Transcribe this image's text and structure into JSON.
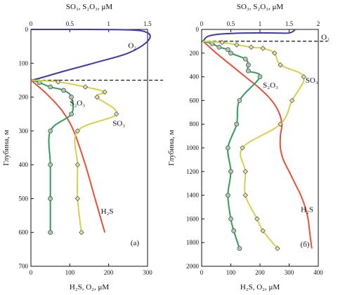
{
  "chart_data": [
    {
      "type": "line",
      "panel_label": "(а)",
      "ylabel": "Глубина, м",
      "y_inverted": true,
      "ylim": [
        0,
        700
      ],
      "yticks": [
        0,
        100,
        200,
        300,
        400,
        500,
        600,
        700
      ],
      "x_top_label": "SO₃, S₂O₃, μM",
      "x_top_lim": [
        0,
        1.5
      ],
      "x_top_ticks": [
        "0",
        "0.5",
        "1",
        "1.5"
      ],
      "x_top_tick_values": [
        0,
        0.5,
        1,
        1.5
      ],
      "x_bottom_label": "H₂S, O₂, μM",
      "x_bottom_lim": [
        0,
        300
      ],
      "x_bottom_ticks": [
        "0",
        "100",
        "200",
        "300"
      ],
      "x_bottom_tick_values": [
        0,
        100,
        200,
        300
      ],
      "dashed_line_depth": 150,
      "series": [
        {
          "name": "O₂",
          "axis": "bottom",
          "color": "#3a3aa8",
          "markers": false,
          "points": [
            [
              0,
              0
            ],
            [
              240,
              1
            ],
            [
              300,
              10
            ],
            [
              300,
              35
            ],
            [
              250,
              70
            ],
            [
              160,
              100
            ],
            [
              80,
              125
            ],
            [
              20,
              145
            ],
            [
              0,
              150
            ]
          ],
          "label_at": [
            250,
            55
          ]
        },
        {
          "name": "H₂S",
          "axis": "bottom",
          "color": "#e8503a",
          "markers": false,
          "points": [
            [
              0,
              150
            ],
            [
              40,
              190
            ],
            [
              80,
              240
            ],
            [
              110,
              300
            ],
            [
              140,
              400
            ],
            [
              165,
              500
            ],
            [
              190,
              600
            ]
          ],
          "label_at": [
            180,
            545
          ]
        },
        {
          "name": "S₂O₃",
          "axis": "top",
          "color": "#2e9e55",
          "markers": true,
          "points": [
            [
              0.01,
              150
            ],
            [
              0.11,
              157
            ],
            [
              0.25,
              170
            ],
            [
              0.42,
              180
            ],
            [
              0.52,
              200
            ],
            [
              0.52,
              250
            ],
            [
              0.25,
              300
            ],
            [
              0.25,
              400
            ],
            [
              0.25,
              500
            ],
            [
              0.25,
              600
            ]
          ],
          "label_at": [
            0.5,
            225
          ]
        },
        {
          "name": "SO₃",
          "axis": "top",
          "color": "#d8cf4a",
          "markers": true,
          "points": [
            [
              0.01,
              150
            ],
            [
              0.35,
              155
            ],
            [
              0.7,
              170
            ],
            [
              0.95,
              185
            ],
            [
              0.85,
              200
            ],
            [
              1.1,
              250
            ],
            [
              0.6,
              300
            ],
            [
              0.6,
              400
            ],
            [
              0.6,
              500
            ],
            [
              0.65,
              600
            ]
          ],
          "label_at": [
            1.05,
            285
          ]
        }
      ]
    },
    {
      "type": "line",
      "panel_label": "(б)",
      "ylabel": "Глубина, м",
      "y_inverted": true,
      "ylim": [
        0,
        2000
      ],
      "yticks": [
        0,
        200,
        400,
        600,
        800,
        1000,
        1200,
        1400,
        1600,
        1800,
        2000
      ],
      "x_top_label": "SO₃, S₂O₃, μM",
      "x_top_lim": [
        0,
        2
      ],
      "x_top_ticks": [
        "0",
        "0.5",
        "1",
        "1.5",
        "2"
      ],
      "x_top_tick_values": [
        0,
        0.5,
        1,
        1.5,
        2
      ],
      "x_bottom_label": "H₂S, O₂, μM",
      "x_bottom_lim": [
        0,
        400
      ],
      "x_bottom_ticks": [
        "0",
        "100",
        "200",
        "300",
        "400"
      ],
      "x_bottom_tick_values": [
        0,
        100,
        200,
        300,
        400
      ],
      "dashed_line_depth": 100,
      "series": [
        {
          "name": "O₂",
          "axis": "bottom",
          "color": "#3a3aa8",
          "markers": false,
          "points": [
            [
              5,
              100
            ],
            [
              20,
              60
            ],
            [
              60,
              40
            ],
            [
              150,
              30
            ],
            [
              250,
              30
            ],
            [
              300,
              30
            ],
            [
              320,
              5
            ]
          ],
          "label_at": [
            410,
            85
          ]
        },
        {
          "name": "H₂S",
          "axis": "bottom",
          "color": "#e8503a",
          "markers": false,
          "points": [
            [
              5,
              100
            ],
            [
              50,
              200
            ],
            [
              100,
              300
            ],
            [
              150,
              400
            ],
            [
              200,
              500
            ],
            [
              240,
              600
            ],
            [
              265,
              700
            ],
            [
              275,
              800
            ],
            [
              270,
              900
            ],
            [
              270,
              1000
            ],
            [
              280,
              1100
            ],
            [
              300,
              1200
            ],
            [
              320,
              1300
            ],
            [
              340,
              1400
            ],
            [
              355,
              1500
            ],
            [
              365,
              1600
            ],
            [
              370,
              1700
            ],
            [
              375,
              1800
            ],
            [
              378,
              1850
            ]
          ],
          "label_at": [
            340,
            1540
          ]
        },
        {
          "name": "S₂O₃",
          "axis": "top",
          "color": "#2e9e55",
          "markers": true,
          "points": [
            [
              0.02,
              100
            ],
            [
              0.18,
              120
            ],
            [
              0.3,
              150
            ],
            [
              0.45,
              170
            ],
            [
              0.5,
              200
            ],
            [
              0.75,
              250
            ],
            [
              0.8,
              300
            ],
            [
              0.8,
              350
            ],
            [
              1.0,
              400
            ],
            [
              0.65,
              600
            ],
            [
              0.6,
              800
            ],
            [
              0.45,
              1000
            ],
            [
              0.5,
              1200
            ],
            [
              0.45,
              1400
            ],
            [
              0.5,
              1600
            ],
            [
              0.55,
              1700
            ],
            [
              0.65,
              1850
            ]
          ],
          "label_at": [
            1.05,
            490
          ]
        },
        {
          "name": "SO₃",
          "axis": "top",
          "color": "#d8cf4a",
          "markers": true,
          "points": [
            [
              0.02,
              100
            ],
            [
              0.35,
              110
            ],
            [
              0.6,
              130
            ],
            [
              0.85,
              150
            ],
            [
              1.05,
              160
            ],
            [
              1.25,
              200
            ],
            [
              1.35,
              300
            ],
            [
              1.75,
              400
            ],
            [
              1.55,
              600
            ],
            [
              1.35,
              800
            ],
            [
              0.7,
              1000
            ],
            [
              0.75,
              1200
            ],
            [
              0.75,
              1400
            ],
            [
              0.95,
              1600
            ],
            [
              1.05,
              1700
            ],
            [
              1.3,
              1850
            ]
          ],
          "label_at": [
            1.78,
            450
          ]
        }
      ]
    }
  ]
}
